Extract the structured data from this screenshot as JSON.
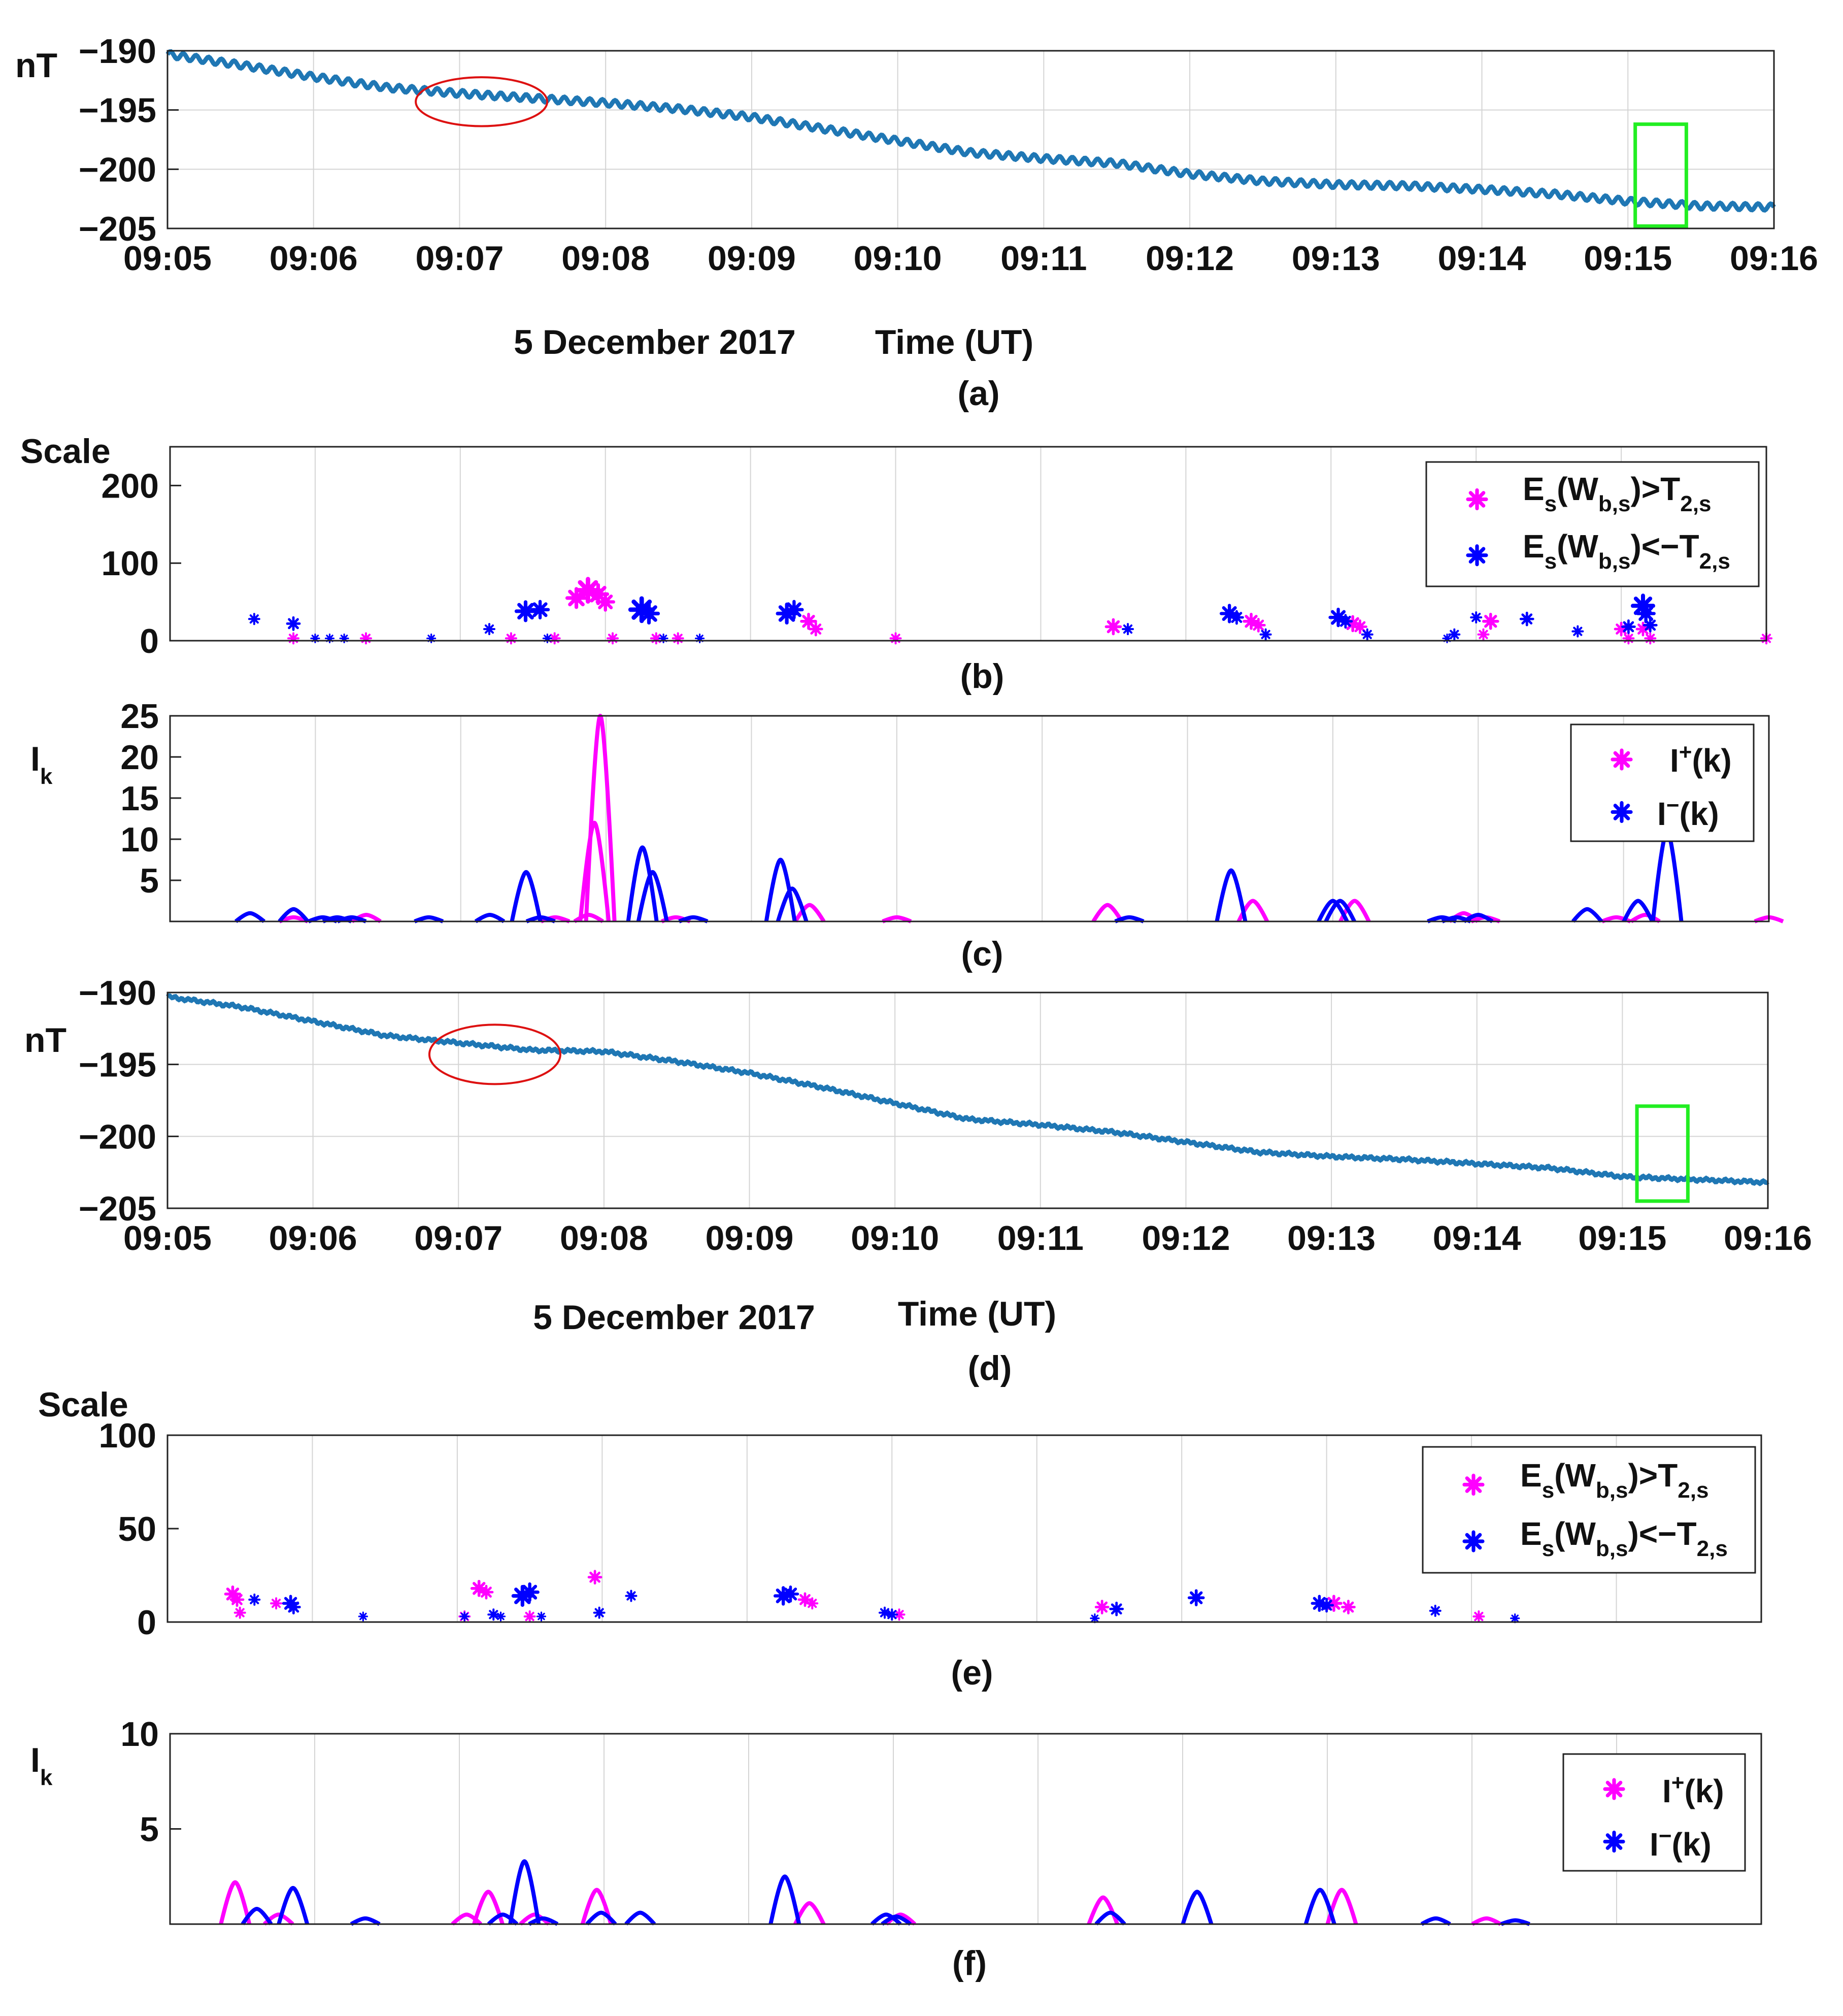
{
  "colors": {
    "series_line": "#1f77b4",
    "positive": "#ff00ff",
    "negative": "#0000ff",
    "annotation_circle": "#dd1111",
    "annotation_box": "#22ee22",
    "grid": "#d4d4d4"
  },
  "chart_data": [
    {
      "id": "a",
      "type": "line",
      "caption": "(a)",
      "ylabel": "nT",
      "ylim": [
        -205,
        -190
      ],
      "yticks": [
        -190,
        -195,
        -200,
        -205
      ],
      "ytick_labels": [
        "−190",
        "−195",
        "−200",
        "−205"
      ],
      "xlim_minutes": [
        0,
        11
      ],
      "xtick_labels": [
        "09:05",
        "09:06",
        "09:07",
        "09:08",
        "09:09",
        "09:10",
        "09:11",
        "09:12",
        "09:13",
        "09:14",
        "09:15",
        "09:16"
      ],
      "date_label": "5 December 2017",
      "xlabel": "Time (UT)",
      "series": [
        {
          "name": "nT",
          "x": [
            0,
            0.5,
            1,
            1.5,
            2,
            2.5,
            3,
            3.5,
            4,
            4.5,
            5,
            5.5,
            6,
            6.5,
            7,
            7.5,
            8,
            8.5,
            9,
            9.5,
            10,
            10.5,
            11
          ],
          "y": [
            -190.3,
            -191.2,
            -192.2,
            -193.1,
            -193.6,
            -194.0,
            -194.4,
            -194.9,
            -195.6,
            -196.6,
            -197.6,
            -198.6,
            -199.1,
            -199.5,
            -200.4,
            -201.0,
            -201.3,
            -201.4,
            -201.7,
            -202.1,
            -202.7,
            -203.1,
            -203.2
          ]
        }
      ],
      "ripple": true,
      "annotations": [
        {
          "shape": "circle",
          "x": 2.15,
          "y": -194.3,
          "rx_minutes": 0.45,
          "ry": 3.2
        },
        {
          "shape": "box",
          "x0": 10.05,
          "x1": 10.4,
          "y0": -204.8,
          "y1": -196.2
        }
      ]
    },
    {
      "id": "b",
      "type": "scatter",
      "caption": "(b)",
      "ylabel": "Scale",
      "ylim": [
        0,
        250
      ],
      "yticks": [
        0,
        100,
        200
      ],
      "ytick_labels": [
        "0",
        "100",
        "200"
      ],
      "xlim_minutes": [
        0,
        11
      ],
      "legend": {
        "position": "top-right",
        "entries": [
          {
            "name": "E_s(W_b,s)>T_2,s",
            "base": "E",
            "sub1": "s",
            "mid": "(W",
            "sub2": "b,s",
            "rel": ")>T",
            "sub3": "2,s"
          },
          {
            "name": "E_s(W_b,s)<−T_2,s",
            "base": "E",
            "sub1": "s",
            "mid": "(W",
            "sub2": "b,s",
            "rel": ")<−T",
            "sub3": "2,s"
          }
        ]
      },
      "series": [
        {
          "name": "E_s(W_b,s)>T_2,s",
          "x": [
            0.85,
            1.35,
            2.35,
            2.65,
            2.8,
            2.88,
            2.95,
            3.0,
            3.05,
            3.35,
            3.5,
            4.4,
            4.45,
            5.0,
            6.5,
            7.45,
            7.5,
            8.15,
            8.2,
            9.05,
            9.1,
            10.0,
            10.05,
            10.15,
            10.2,
            11.0
          ],
          "y": [
            3,
            3,
            3,
            3,
            55,
            65,
            60,
            50,
            3,
            3,
            3,
            25,
            15,
            3,
            18,
            25,
            20,
            22,
            18,
            8,
            25,
            15,
            3,
            15,
            3,
            3
          ],
          "size": [
            10,
            10,
            10,
            10,
            18,
            22,
            18,
            16,
            10,
            10,
            10,
            14,
            12,
            10,
            14,
            14,
            12,
            14,
            12,
            10,
            14,
            12,
            10,
            12,
            10,
            10
          ]
        },
        {
          "name": "E_s(W_b,s)<−T_2,s",
          "x": [
            0.58,
            0.85,
            1.0,
            1.1,
            1.2,
            1.8,
            2.2,
            2.45,
            2.55,
            2.6,
            3.25,
            3.3,
            3.4,
            3.65,
            4.25,
            4.3,
            6.6,
            7.3,
            7.35,
            7.55,
            8.05,
            8.1,
            8.25,
            8.8,
            8.85,
            9.0,
            9.35,
            9.7,
            10.05,
            10.15,
            10.17,
            10.2
          ],
          "y": [
            28,
            22,
            3,
            3,
            3,
            3,
            15,
            38,
            40,
            3,
            40,
            35,
            3,
            3,
            35,
            40,
            15,
            35,
            30,
            8,
            30,
            25,
            8,
            3,
            8,
            30,
            28,
            12,
            18,
            45,
            35,
            20
          ],
          "size": [
            10,
            12,
            8,
            8,
            8,
            8,
            10,
            18,
            16,
            8,
            22,
            18,
            8,
            8,
            18,
            16,
            10,
            16,
            12,
            10,
            16,
            12,
            10,
            8,
            10,
            10,
            12,
            10,
            12,
            20,
            16,
            12
          ]
        }
      ]
    },
    {
      "id": "c",
      "type": "line",
      "caption": "(c)",
      "ylabel": "I",
      "ylabel_sub": "k",
      "ylim": [
        0,
        25
      ],
      "yticks": [
        5,
        10,
        15,
        20,
        25
      ],
      "ytick_labels": [
        "5",
        "10",
        "15",
        "20",
        "25"
      ],
      "xlim_minutes": [
        0,
        11
      ],
      "legend": {
        "position": "top-right",
        "entries": [
          {
            "name": "I⁺(k)",
            "base": "I",
            "sup": "+",
            "tail": "(k)"
          },
          {
            "name": "I⁻(k)",
            "base": "I",
            "sup": "−",
            "tail": "(k)"
          }
        ]
      },
      "series": [
        {
          "name": "I⁺(k)",
          "peaks": [
            [
              0.85,
              0.5
            ],
            [
              1.35,
              0.8
            ],
            [
              2.65,
              0.5
            ],
            [
              2.88,
              0.8
            ],
            [
              2.92,
              12.0
            ],
            [
              2.96,
              25.0
            ],
            [
              3.48,
              0.5
            ],
            [
              4.4,
              2.0
            ],
            [
              5.0,
              0.5
            ],
            [
              6.45,
              2.0
            ],
            [
              7.45,
              2.5
            ],
            [
              8.15,
              2.5
            ],
            [
              8.9,
              1.0
            ],
            [
              9.05,
              0.5
            ],
            [
              9.95,
              0.5
            ],
            [
              10.15,
              0.8
            ],
            [
              11.0,
              0.5
            ]
          ]
        },
        {
          "name": "I⁻(k)",
          "peaks": [
            [
              0.55,
              1.0
            ],
            [
              0.85,
              1.5
            ],
            [
              1.05,
              0.5
            ],
            [
              1.15,
              0.5
            ],
            [
              1.25,
              0.5
            ],
            [
              1.78,
              0.5
            ],
            [
              2.2,
              0.8
            ],
            [
              2.45,
              6.0
            ],
            [
              2.55,
              0.5
            ],
            [
              3.25,
              9.0
            ],
            [
              3.32,
              6.0
            ],
            [
              3.6,
              0.5
            ],
            [
              4.2,
              7.5
            ],
            [
              4.28,
              4.0
            ],
            [
              6.6,
              0.5
            ],
            [
              7.3,
              6.2
            ],
            [
              8.0,
              2.5
            ],
            [
              8.05,
              2.5
            ],
            [
              8.75,
              0.5
            ],
            [
              8.85,
              0.5
            ],
            [
              9.0,
              0.8
            ],
            [
              9.75,
              1.5
            ],
            [
              10.1,
              2.5
            ],
            [
              10.3,
              11.0
            ]
          ]
        }
      ]
    },
    {
      "id": "d",
      "type": "line",
      "caption": "(d)",
      "ylabel": "nT",
      "ylim": [
        -205,
        -190
      ],
      "yticks": [
        -190,
        -195,
        -200,
        -205
      ],
      "ytick_labels": [
        "−190",
        "−195",
        "−200",
        "−205"
      ],
      "xlim_minutes": [
        0,
        11
      ],
      "xtick_labels": [
        "09:05",
        "09:06",
        "09:07",
        "09:08",
        "09:09",
        "09:10",
        "09:11",
        "09:12",
        "09:13",
        "09:14",
        "09:15",
        "09:16"
      ],
      "date_label": "5 December 2017",
      "xlabel": "Time (UT)",
      "series": [
        {
          "name": "nT",
          "x": [
            0,
            0.5,
            1,
            1.5,
            2,
            2.5,
            3,
            3.5,
            4,
            4.5,
            5,
            5.5,
            6,
            6.5,
            7,
            7.5,
            8,
            8.5,
            9,
            9.5,
            10,
            10.5,
            11
          ],
          "y": [
            -190.3,
            -191.0,
            -192.0,
            -193.0,
            -193.5,
            -194.0,
            -194.1,
            -194.8,
            -195.6,
            -196.6,
            -197.7,
            -198.8,
            -199.2,
            -199.7,
            -200.4,
            -201.1,
            -201.4,
            -201.6,
            -201.9,
            -202.2,
            -202.8,
            -203.0,
            -203.2
          ]
        }
      ],
      "ripple": false,
      "annotations": [
        {
          "shape": "circle",
          "x": 2.25,
          "y": -194.3,
          "rx_minutes": 0.45,
          "ry": 3.2
        },
        {
          "shape": "box",
          "x0": 10.1,
          "x1": 10.45,
          "y0": -204.5,
          "y1": -197.9
        }
      ]
    },
    {
      "id": "e",
      "type": "scatter",
      "caption": "(e)",
      "ylabel": "Scale",
      "ylim": [
        0,
        100
      ],
      "yticks": [
        0,
        50,
        100
      ],
      "ytick_labels": [
        "0",
        "50",
        "100"
      ],
      "xlim_minutes": [
        0,
        11
      ],
      "legend": {
        "position": "top-right",
        "entries": [
          {
            "name": "E_s(W_b,s)>T_2,s",
            "base": "E",
            "sub1": "s",
            "mid": "(W",
            "sub2": "b,s",
            "rel": ")>T",
            "sub3": "2,s"
          },
          {
            "name": "E_s(W_b,s)<−T_2,s",
            "base": "E",
            "sub1": "s",
            "mid": "(W",
            "sub2": "b,s",
            "rel": ")<−T",
            "sub3": "2,s"
          }
        ]
      },
      "series": [
        {
          "name": "E_s(W_b,s)>T_2,s",
          "x": [
            0.45,
            0.48,
            0.5,
            0.75,
            2.05,
            2.15,
            2.2,
            2.5,
            2.95,
            4.4,
            4.45,
            5.05,
            6.45,
            8.05,
            8.15,
            9.05
          ],
          "y": [
            15,
            12,
            5,
            10,
            3,
            18,
            16,
            3,
            24,
            12,
            10,
            4,
            8,
            10,
            8,
            3
          ],
          "size": [
            14,
            12,
            10,
            10,
            10,
            14,
            12,
            10,
            12,
            12,
            10,
            10,
            12,
            14,
            12,
            10
          ],
          "unused": false
        },
        {
          "name": "E_s(W_b,s)<−T_2,s",
          "x": [
            0.6,
            0.85,
            0.87,
            1.35,
            2.05,
            2.25,
            2.3,
            2.45,
            2.5,
            2.58,
            2.98,
            3.2,
            4.25,
            4.3,
            4.95,
            5.0,
            6.4,
            6.55,
            7.1,
            7.95,
            8.0,
            8.75,
            9.3
          ],
          "y": [
            12,
            10,
            8,
            3,
            3,
            4,
            3,
            14,
            16,
            3,
            5,
            14,
            14,
            15,
            5,
            4,
            2,
            7,
            13,
            10,
            9,
            6,
            2
          ],
          "size": [
            10,
            14,
            12,
            8,
            8,
            10,
            8,
            18,
            16,
            8,
            10,
            10,
            16,
            14,
            10,
            10,
            8,
            12,
            14,
            14,
            12,
            10,
            8
          ]
        }
      ]
    },
    {
      "id": "f",
      "type": "line",
      "caption": "(f)",
      "ylabel": "I",
      "ylabel_sub": "k",
      "ylim": [
        0,
        10
      ],
      "yticks": [
        5,
        10
      ],
      "ytick_labels": [
        "5",
        "10"
      ],
      "xlim_minutes": [
        0,
        11
      ],
      "legend": {
        "position": "top-right",
        "entries": [
          {
            "name": "I⁺(k)",
            "base": "I",
            "sup": "+",
            "tail": "(k)"
          },
          {
            "name": "I⁻(k)",
            "base": "I",
            "sup": "−",
            "tail": "(k)"
          }
        ]
      },
      "series": [
        {
          "name": "I⁺(k)",
          "peaks": [
            [
              0.45,
              2.2
            ],
            [
              0.75,
              0.5
            ],
            [
              2.05,
              0.5
            ],
            [
              2.2,
              1.7
            ],
            [
              2.52,
              0.5
            ],
            [
              2.95,
              1.8
            ],
            [
              4.42,
              1.1
            ],
            [
              5.05,
              0.5
            ],
            [
              6.45,
              1.4
            ],
            [
              8.1,
              1.8
            ],
            [
              9.1,
              0.3
            ]
          ]
        },
        {
          "name": "I⁻(k)",
          "peaks": [
            [
              0.6,
              0.8
            ],
            [
              0.85,
              1.9
            ],
            [
              1.35,
              0.3
            ],
            [
              2.3,
              0.5
            ],
            [
              2.45,
              3.3
            ],
            [
              2.58,
              0.3
            ],
            [
              2.98,
              0.6
            ],
            [
              3.25,
              0.6
            ],
            [
              4.25,
              2.5
            ],
            [
              4.95,
              0.5
            ],
            [
              5.02,
              0.4
            ],
            [
              6.5,
              0.6
            ],
            [
              7.1,
              1.7
            ],
            [
              7.95,
              1.8
            ],
            [
              8.75,
              0.3
            ],
            [
              9.3,
              0.2
            ]
          ]
        }
      ]
    }
  ]
}
